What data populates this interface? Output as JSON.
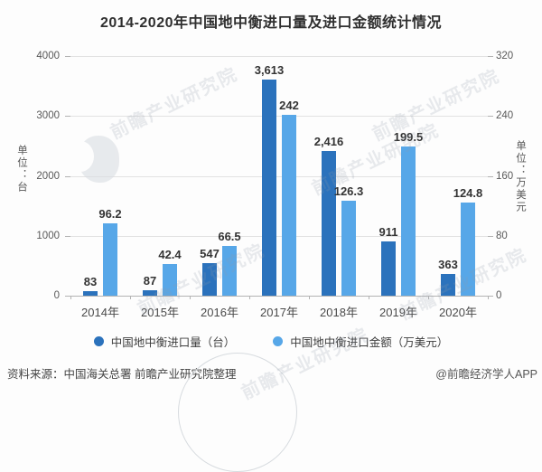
{
  "title": "2014-2020年中国地中衡进口量及进口金额统计情况",
  "chart_data": {
    "type": "bar",
    "title": "2014-2020年中国地中衡进口量及进口金额统计情况",
    "categories": [
      "2014年",
      "2015年",
      "2016年",
      "2017年",
      "2018年",
      "2019年",
      "2020年"
    ],
    "series": [
      {
        "name": "中国地中衡进口量（台）",
        "axis": "left",
        "color": "#2B72BC",
        "values": [
          83,
          87,
          547,
          3613,
          2416,
          911,
          363
        ],
        "labels": [
          "83",
          "87",
          "547",
          "3,613",
          "2,416",
          "911",
          "363"
        ]
      },
      {
        "name": "中国地中衡进口金额（万美元）",
        "axis": "right",
        "color": "#57A7E8",
        "values": [
          96.2,
          42.4,
          66.5,
          242,
          126.3,
          199.5,
          124.8
        ],
        "labels": [
          "96.2",
          "42.4",
          "66.5",
          "242",
          "126.3",
          "199.5",
          "124.8"
        ]
      }
    ],
    "left_axis": {
      "label": "单位：台",
      "ticks": [
        "0",
        "1000",
        "2000",
        "3000",
        "4000"
      ],
      "max": 4000
    },
    "right_axis": {
      "label": "单位：万美元",
      "ticks": [
        "0",
        "80",
        "160",
        "240",
        "320"
      ],
      "max": 320
    },
    "grid": true,
    "legend_position": "bottom"
  },
  "footer": {
    "source": "资料来源：中国海关总署 前瞻产业研究院整理",
    "credit": "@前瞻经济学人APP"
  },
  "watermark": {
    "text": "前瞻产业研究院"
  }
}
